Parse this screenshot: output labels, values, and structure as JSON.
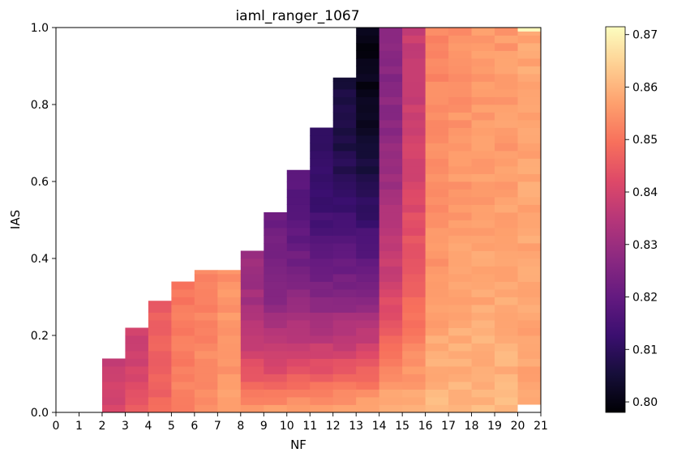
{
  "chart_data": {
    "type": "heatmap",
    "title": "iaml_ranger_1067",
    "xlabel": "NF",
    "ylabel": "IAS",
    "xlim": [
      0,
      21
    ],
    "ylim": [
      0,
      1
    ],
    "x_ticks": [
      "0",
      "1",
      "2",
      "3",
      "4",
      "5",
      "6",
      "7",
      "8",
      "9",
      "10",
      "11",
      "12",
      "13",
      "14",
      "15",
      "16",
      "17",
      "18",
      "19",
      "20",
      "21"
    ],
    "y_ticks": [
      "0.0",
      "0.2",
      "0.4",
      "0.6",
      "0.8",
      "1.0"
    ],
    "colorbar": {
      "min": 0.798,
      "max": 0.8715,
      "ticks": [
        "0.80",
        "0.81",
        "0.82",
        "0.83",
        "0.84",
        "0.85",
        "0.86",
        "0.87"
      ],
      "colormap": "magma"
    },
    "columns": [
      {
        "nf": 2,
        "ias_max": 0.14,
        "value_top": 0.838,
        "value_bottom": 0.842
      },
      {
        "nf": 3,
        "ias_max": 0.22,
        "value_top": 0.839,
        "value_bottom": 0.846
      },
      {
        "nf": 4,
        "ias_max": 0.29,
        "value_top": 0.846,
        "value_bottom": 0.848
      },
      {
        "nf": 5,
        "ias_max": 0.34,
        "value_top": 0.851,
        "value_bottom": 0.852
      },
      {
        "nf": 6,
        "ias_max": 0.37,
        "value_top": 0.853,
        "value_bottom": 0.854
      },
      {
        "nf": 7,
        "ias_max": 0.37,
        "value_top": 0.855,
        "value_bottom": 0.857
      },
      {
        "nf": 8,
        "ias_max": 0.42,
        "value_top": 0.83,
        "value_bottom": 0.858
      },
      {
        "nf": 9,
        "ias_max": 0.52,
        "value_top": 0.822,
        "value_bottom": 0.859
      },
      {
        "nf": 10,
        "ias_max": 0.63,
        "value_top": 0.818,
        "value_bottom": 0.86
      },
      {
        "nf": 11,
        "ias_max": 0.74,
        "value_top": 0.811,
        "value_bottom": 0.86
      },
      {
        "nf": 12,
        "ias_max": 0.87,
        "value_top": 0.806,
        "value_bottom": 0.86
      },
      {
        "nf": 13,
        "ias_max": 1.0,
        "value_top": 0.8,
        "value_bottom": 0.861
      },
      {
        "nf": 14,
        "ias_max": 1.0,
        "value_top": 0.826,
        "value_bottom": 0.861
      },
      {
        "nf": 15,
        "ias_max": 1.0,
        "value_top": 0.838,
        "value_bottom": 0.861
      },
      {
        "nf": 16,
        "ias_max": 1.0,
        "value_top": 0.853,
        "value_bottom": 0.861
      },
      {
        "nf": 17,
        "ias_max": 1.0,
        "value_top": 0.855,
        "value_bottom": 0.861
      },
      {
        "nf": 18,
        "ias_max": 1.0,
        "value_top": 0.856,
        "value_bottom": 0.861
      },
      {
        "nf": 19,
        "ias_max": 1.0,
        "value_top": 0.856,
        "value_bottom": 0.861
      },
      {
        "nf": 20,
        "ias_max": 0.99,
        "value_top": 0.858,
        "value_bottom": 0.857
      }
    ]
  }
}
